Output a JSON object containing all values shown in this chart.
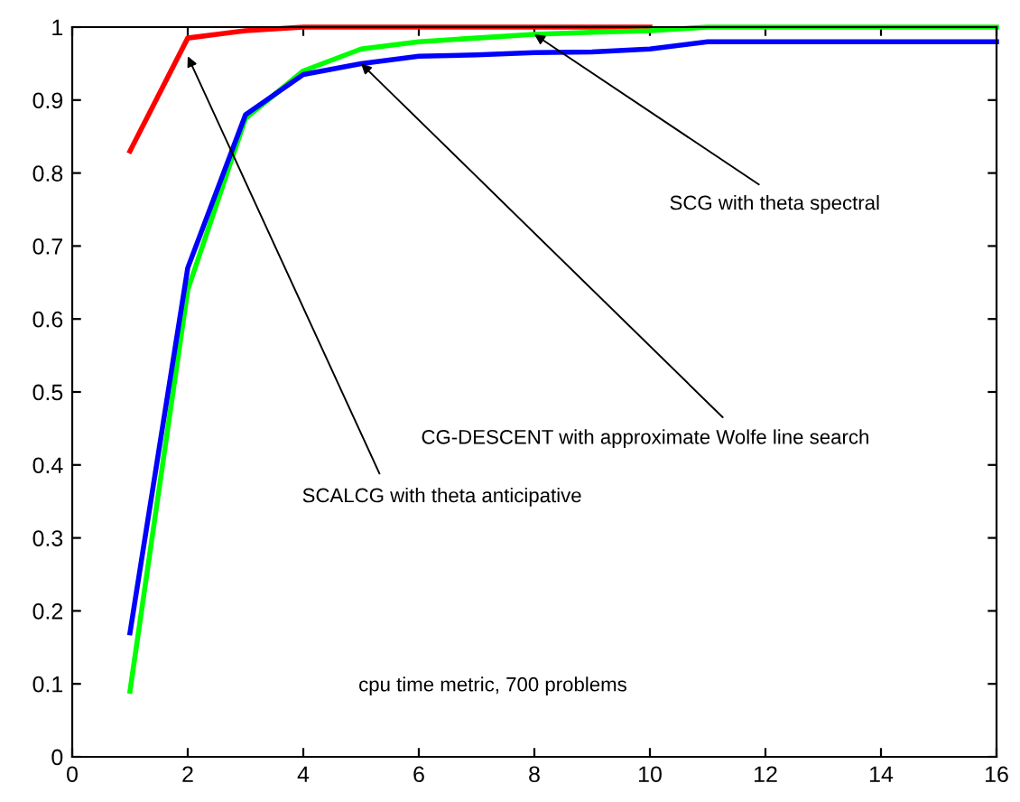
{
  "chart_data": {
    "type": "line",
    "x": [
      1,
      2,
      3,
      4,
      5,
      6,
      7,
      8,
      9,
      10,
      11,
      12,
      13,
      14,
      15,
      16
    ],
    "series": [
      {
        "color": "#ff0000",
        "values": [
          0.83,
          0.985,
          0.995,
          1,
          1,
          1,
          1,
          1,
          1,
          1,
          null,
          null,
          null,
          null,
          null,
          null
        ]
      },
      {
        "color": "#00ff00",
        "values": [
          0.09,
          0.64,
          0.875,
          0.94,
          0.97,
          0.98,
          0.985,
          0.99,
          0.993,
          0.995,
          1,
          1,
          1,
          1,
          1,
          1
        ]
      },
      {
        "color": "#0000ff",
        "values": [
          0.17,
          0.67,
          0.88,
          0.935,
          0.95,
          0.96,
          0.962,
          0.965,
          0.966,
          0.97,
          0.98,
          0.98,
          0.98,
          0.98,
          0.98,
          0.98
        ]
      }
    ],
    "xlim": [
      0,
      16
    ],
    "ylim": [
      0,
      1
    ],
    "xticks": [
      0,
      2,
      4,
      6,
      8,
      10,
      12,
      14,
      16
    ],
    "yticks": [
      0,
      0.1,
      0.2,
      0.3,
      0.4,
      0.5,
      0.6,
      0.7,
      0.8,
      0.9,
      1
    ],
    "annotations": [
      {
        "text": "SCG with theta spectral",
        "x": 8,
        "y": 0.99
      },
      {
        "text": "CG-DESCENT with approximate Wolfe line search",
        "x": 5,
        "y": 0.95
      },
      {
        "text": "SCALCG with theta anticipative",
        "x": 2,
        "y": 0.96
      },
      "cpu time metric, 700 problems"
    ],
    "grid": false,
    "legend": false,
    "marker": "none",
    "line_style": "solid"
  }
}
